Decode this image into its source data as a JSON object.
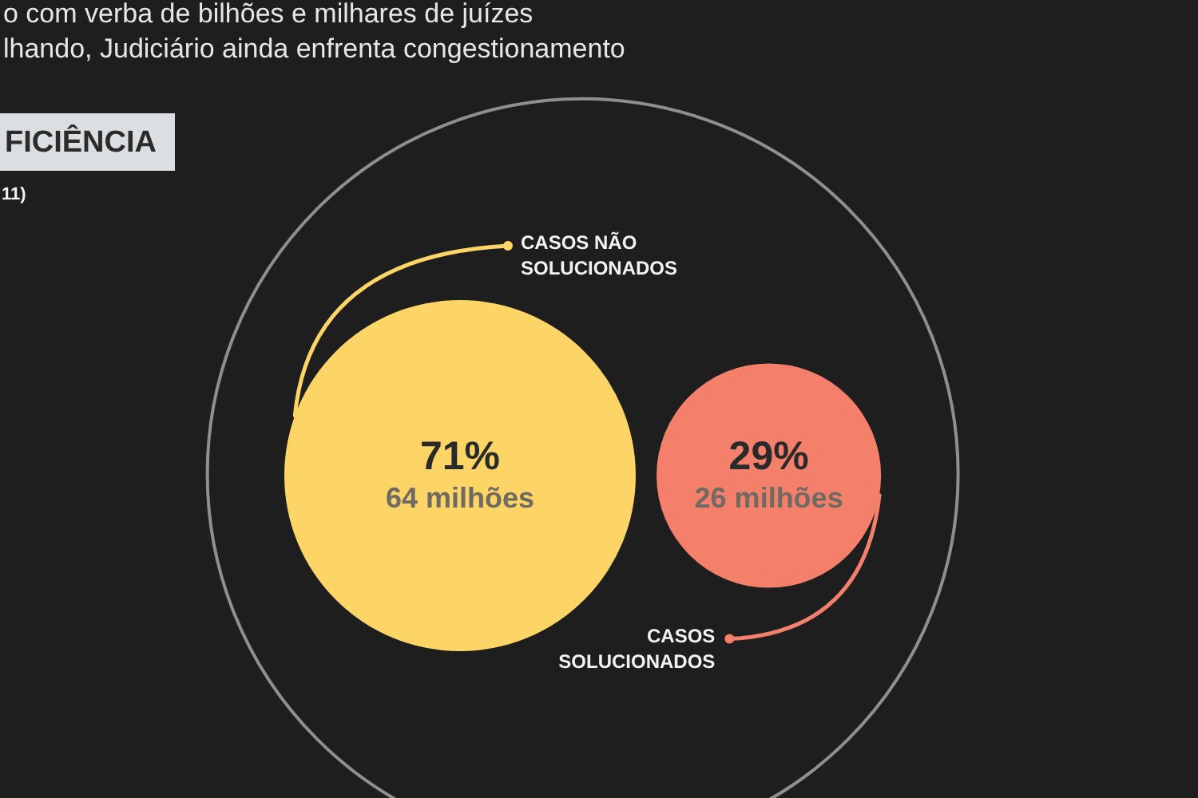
{
  "chart_data": {
    "type": "other",
    "title": "o com verba de bilhões e milhares de juízes",
    "subtitle": "lhando, Judiciário ainda enfrenta congestionamento",
    "categories": [
      "CASOS NÃO SOLUCIONADOS",
      "CASOS SOLUCIONADOS"
    ],
    "values": [
      71,
      29
    ],
    "value_labels": [
      "71%",
      "29%"
    ],
    "colors": [
      "#fdd567",
      "#f47f6b"
    ],
    "annotations": [
      "FICIÊNCIA",
      "11)",
      {
        "text": "64 milhões",
        "x": "CASOS NÃO SOLUCIONADOS"
      },
      {
        "text": "26 milhões",
        "x": "CASOS SOLUCIONADOS"
      }
    ]
  }
}
